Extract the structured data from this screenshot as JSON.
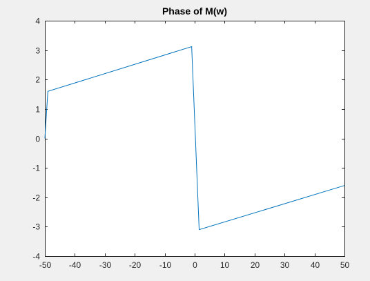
{
  "chart_data": {
    "type": "line",
    "title": "Phase of M(w)",
    "xlabel": "",
    "ylabel": "",
    "xlim": [
      -50,
      50
    ],
    "ylim": [
      -4,
      4
    ],
    "xticks": [
      -50,
      -40,
      -30,
      -20,
      -10,
      0,
      10,
      20,
      30,
      40,
      50
    ],
    "yticks": [
      -4,
      -3,
      -2,
      -1,
      0,
      1,
      2,
      3,
      4
    ],
    "grid": false,
    "series": [
      {
        "color": "#0072bd",
        "x": [
          -50,
          -49,
          -1,
          1.5,
          50
        ],
        "y": [
          0,
          1.6,
          3.12,
          -3.1,
          -1.6
        ]
      }
    ]
  },
  "colors": {
    "figure_bg": "#f0f0f0",
    "axes_bg": "#ffffff",
    "axis_line": "#262626",
    "series_line": "#0072bd"
  }
}
